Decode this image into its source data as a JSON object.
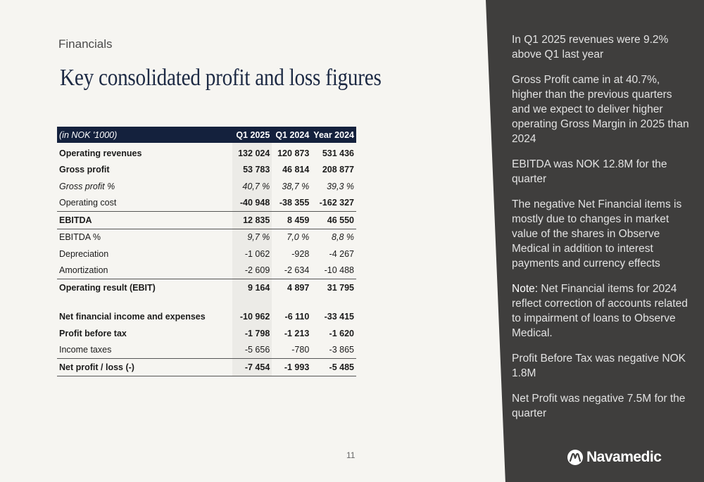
{
  "header": {
    "section": "Financials",
    "title": "Key consolidated profit and loss figures"
  },
  "table": {
    "columns": [
      "(in NOK '1000)",
      "Q1 2025",
      "Q1 2024",
      "Year 2024"
    ],
    "rows": [
      {
        "label": "Operating revenues",
        "q1_2025": "132 024",
        "q1_2024": "120 873",
        "year_2024": "531 436"
      },
      {
        "label": "Gross profit",
        "q1_2025": "53 783",
        "q1_2024": "46 814",
        "year_2024": "208 877"
      },
      {
        "label": "Gross profit %",
        "q1_2025": "40,7 %",
        "q1_2024": "38,7 %",
        "year_2024": "39,3 %"
      },
      {
        "label": "Operating cost",
        "q1_2025": "-40 948",
        "q1_2024": "-38 355",
        "year_2024": "-162 327"
      },
      {
        "label": "EBITDA",
        "q1_2025": "12 835",
        "q1_2024": "8 459",
        "year_2024": "46 550"
      },
      {
        "label": "EBITDA %",
        "q1_2025": "9,7 %",
        "q1_2024": "7,0 %",
        "year_2024": "8,8 %"
      },
      {
        "label": "Depreciation",
        "q1_2025": "-1 062",
        "q1_2024": "-928",
        "year_2024": "-4 267"
      },
      {
        "label": "Amortization",
        "q1_2025": "-2 609",
        "q1_2024": "-2 634",
        "year_2024": "-10 488"
      },
      {
        "label": "Operating result (EBIT)",
        "q1_2025": "9 164",
        "q1_2024": "4 897",
        "year_2024": "31 795"
      },
      {
        "label": "Net financial income and expenses",
        "q1_2025": "-10 962",
        "q1_2024": "-6 110",
        "year_2024": "-33 415"
      },
      {
        "label": "Profit before tax",
        "q1_2025": "-1 798",
        "q1_2024": "-1 213",
        "year_2024": "-1 620"
      },
      {
        "label": "Income taxes",
        "q1_2025": "-5 656",
        "q1_2024": "-780",
        "year_2024": "-3 865"
      },
      {
        "label": "Net profit / loss (-)",
        "q1_2025": "-7 454",
        "q1_2024": "-1 993",
        "year_2024": "-5 485"
      }
    ]
  },
  "page_number": "11",
  "commentary": {
    "p1": "In Q1 2025 revenues were 9.2% above Q1 last year",
    "p2": "Gross Profit came in at 40.7%, higher than the previous quarters and we expect to deliver higher operating Gross Margin in 2025 than 2024",
    "p3": "EBITDA was NOK 12.8M for the quarter",
    "p4": "The negative Net Financial items is mostly due to changes in market value of the shares in Observe Medical in addition to interest payments and currency effects",
    "p5_lead": "Note:",
    "p5": " Net Financial items for 2024 reflect correction of accounts related to impairment of loans to Observe Medical.",
    "p6": "Profit Before Tax was negative NOK 1.8M",
    "p7": "Net Profit was negative 7.5M for the quarter"
  },
  "logo": {
    "text": "Navamedic",
    "icon": "navamedic-logo-icon"
  },
  "colors": {
    "header_navy": "#14213d",
    "title_navy": "#1d2a44",
    "panel": "#3f3e3d",
    "background": "#f6f5f1"
  }
}
